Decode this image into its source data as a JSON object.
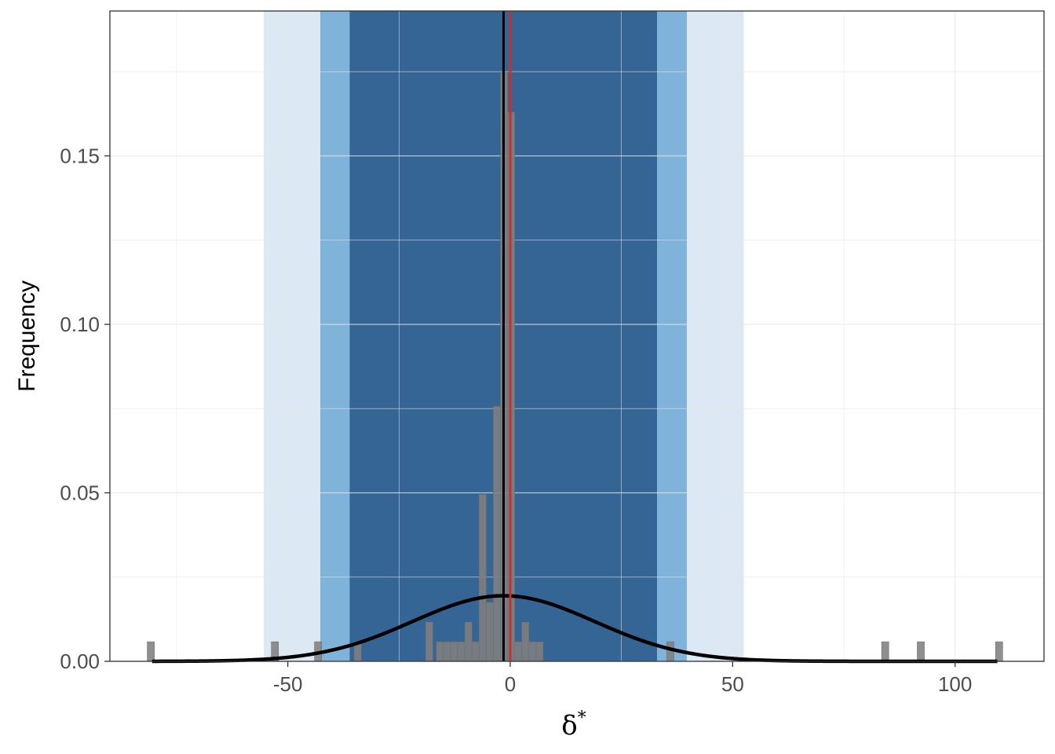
{
  "chart_data": {
    "type": "histogram",
    "xlabel": "δ",
    "xlabel_superscript": "*",
    "ylabel": "Frequency",
    "xlim": [
      -90,
      120
    ],
    "ylim": [
      0,
      0.193
    ],
    "x_ticks": [
      -50,
      0,
      50,
      100
    ],
    "x_tick_labels": [
      "-50",
      "0",
      "50",
      "100"
    ],
    "y_ticks": [
      0.0,
      0.05,
      0.1,
      0.15
    ],
    "y_tick_labels": [
      "0.00",
      "0.05",
      "0.10",
      "0.15"
    ],
    "grid": true,
    "bands": [
      {
        "name": "outer",
        "x0": -55.4,
        "x1": 52.5,
        "color": "#dce8f4"
      },
      {
        "name": "middle",
        "x0": -42.7,
        "x1": 39.7,
        "color": "#80b3d9"
      },
      {
        "name": "inner",
        "x0": -36.1,
        "x1": 33.0,
        "color": "#356594"
      }
    ],
    "histogram": {
      "bin_width": 1.6,
      "color": "#808080",
      "bins": [
        {
          "x": -80.8,
          "y": 0.0058
        },
        {
          "x": -52.9,
          "y": 0.0058
        },
        {
          "x": -43.2,
          "y": 0.0058
        },
        {
          "x": -34.3,
          "y": 0.0058
        },
        {
          "x": -18.2,
          "y": 0.0116
        },
        {
          "x": -15.8,
          "y": 0.0058
        },
        {
          "x": -14.2,
          "y": 0.0058
        },
        {
          "x": -12.6,
          "y": 0.0058
        },
        {
          "x": -11.0,
          "y": 0.0058
        },
        {
          "x": -9.4,
          "y": 0.0116
        },
        {
          "x": -7.8,
          "y": 0.0058
        },
        {
          "x": -6.2,
          "y": 0.0495
        },
        {
          "x": -4.6,
          "y": 0.0175
        },
        {
          "x": -3.0,
          "y": 0.0757
        },
        {
          "x": -1.4,
          "y": 0.1747
        },
        {
          "x": 0.2,
          "y": 0.163
        },
        {
          "x": 1.8,
          "y": 0.0058
        },
        {
          "x": 3.4,
          "y": 0.0116
        },
        {
          "x": 5.0,
          "y": 0.0058
        },
        {
          "x": 6.6,
          "y": 0.0058
        },
        {
          "x": 36.0,
          "y": 0.0058
        },
        {
          "x": 84.3,
          "y": 0.0058
        },
        {
          "x": 92.3,
          "y": 0.0058
        },
        {
          "x": 109.9,
          "y": 0.0058
        }
      ]
    },
    "density_curve": {
      "type": "normal",
      "mean": -1.5,
      "sd": 20.5,
      "x_range": [
        -80.5,
        109.5
      ],
      "color": "#000000"
    },
    "vlines": [
      {
        "name": "black",
        "x": -1.5,
        "color": "#000000"
      },
      {
        "name": "red",
        "x": 0.0,
        "color": "#c62f2f"
      }
    ]
  }
}
